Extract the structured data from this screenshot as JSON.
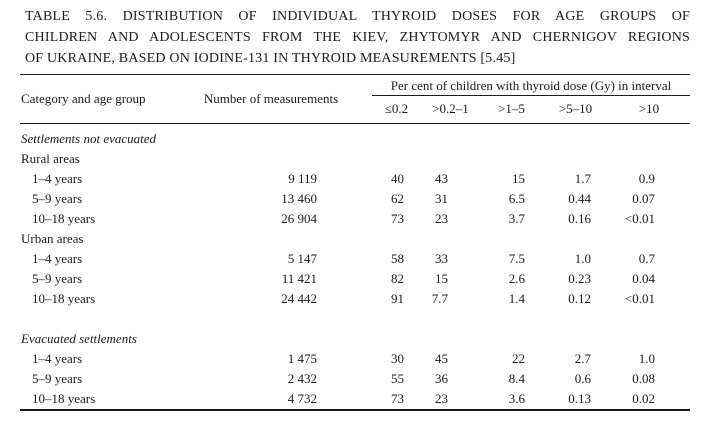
{
  "page": {
    "background_color": "#ffffff",
    "text_color": "#1b1b1b",
    "rule_color": "#1b1b1b"
  },
  "title_lines": [
    "TABLE 5.6. DISTRIBUTION OF INDIVIDUAL THYROID DOSES FOR AGE GROUPS OF",
    "CHILDREN AND ADOLESCENTS FROM THE KIEV, ZHYTOMYR AND CHERNIGOV REGIONS",
    "OF UKRAINE, BASED ON IODINE-131 IN THYROID MEASUREMENTS [5.45]"
  ],
  "table": {
    "headers": {
      "category": "Category and age group",
      "measurements": "Number of measurements",
      "dose_group": "Per cent of children with thyroid dose (Gy) in interval",
      "dose_intervals": [
        "≤0.2",
        ">0.2–1",
        ">1–5",
        ">5–10",
        ">10"
      ]
    },
    "sections": [
      {
        "label": "Settlements not evacuated",
        "groups": [
          {
            "label": "Rural areas",
            "rows": [
              {
                "age": "1–4 years",
                "measurements": "9 119",
                "values": [
                  "40",
                  "43",
                  "15",
                  "1.7",
                  "0.9"
                ]
              },
              {
                "age": "5–9 years",
                "measurements": "13 460",
                "values": [
                  "62",
                  "31",
                  "6.5",
                  "0.44",
                  "0.07"
                ]
              },
              {
                "age": "10–18 years",
                "measurements": "26 904",
                "values": [
                  "73",
                  "23",
                  "3.7",
                  "0.16",
                  "<0.01"
                ]
              }
            ]
          },
          {
            "label": "Urban areas",
            "rows": [
              {
                "age": "1–4 years",
                "measurements": "5 147",
                "values": [
                  "58",
                  "33",
                  "7.5",
                  "1.0",
                  "0.7"
                ]
              },
              {
                "age": "5–9 years",
                "measurements": "11 421",
                "values": [
                  "82",
                  "15",
                  "2.6",
                  "0.23",
                  "0.04"
                ]
              },
              {
                "age": "10–18 years",
                "measurements": "24 442",
                "values": [
                  "91",
                  "7.7",
                  "1.4",
                  "0.12",
                  "<0.01"
                ]
              }
            ]
          }
        ]
      },
      {
        "label": "Evacuated settlements",
        "groups": [
          {
            "label": "",
            "rows": [
              {
                "age": "1–4 years",
                "measurements": "1 475",
                "values": [
                  "30",
                  "45",
                  "22",
                  "2.7",
                  "1.0"
                ]
              },
              {
                "age": "5–9 years",
                "measurements": "2 432",
                "values": [
                  "55",
                  "36",
                  "8.4",
                  "0.6",
                  "0.08"
                ]
              },
              {
                "age": "10–18 years",
                "measurements": "4 732",
                "values": [
                  "73",
                  "23",
                  "3.6",
                  "0.13",
                  "0.02"
                ]
              }
            ]
          }
        ]
      }
    ]
  }
}
